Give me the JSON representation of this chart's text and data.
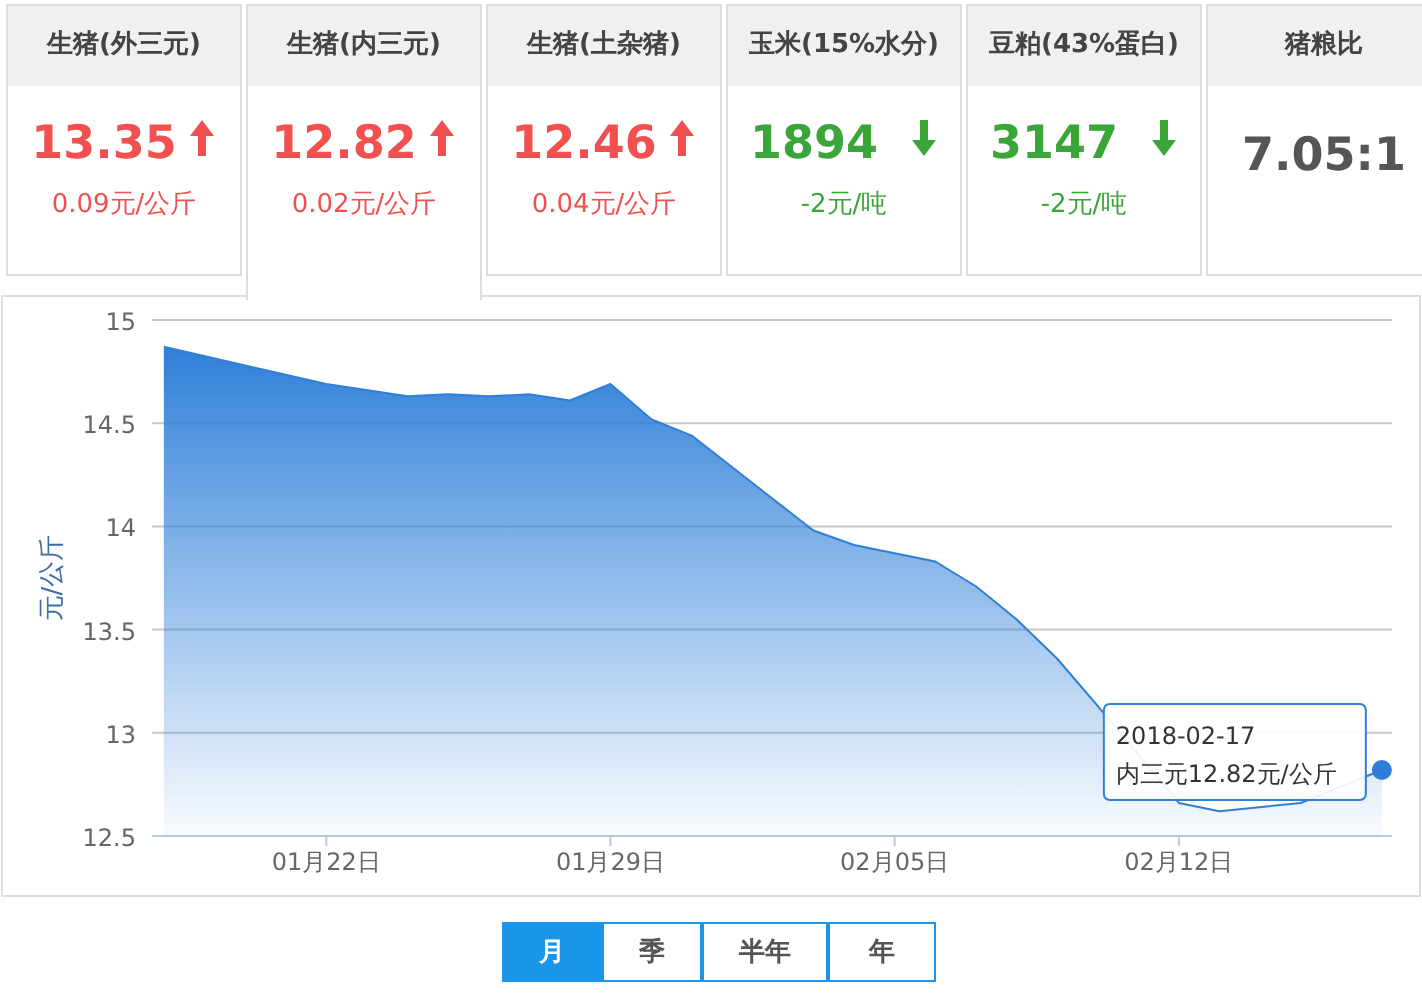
{
  "chart_data": [
    {
      "type": "other",
      "categories": [
        "生猪(外三元)",
        "生猪(内三元)",
        "生猪(土杂猪)",
        "玉米(15%水分)",
        "豆粕(43%蛋白)",
        "猪粮比"
      ],
      "annotations": [
        "13.35",
        "0.09元/公斤",
        "12.82",
        "0.02元/公斤",
        "12.46",
        "0.04元/公斤",
        "1894",
        "-2元/吨",
        "3147",
        "-2元/吨",
        "7.05:1"
      ]
    },
    {
      "type": "area",
      "ylabel": "元/公斤",
      "x": [
        "2018-01-18",
        "2018-01-20",
        "2018-01-22",
        "2018-01-24",
        "2018-01-25",
        "2018-01-26",
        "2018-01-27",
        "2018-01-28",
        "2018-01-29",
        "2018-01-30",
        "2018-01-31",
        "2018-02-03",
        "2018-02-04",
        "2018-02-06",
        "2018-02-07",
        "2018-02-08",
        "2018-02-09",
        "2018-02-10",
        "2018-02-12",
        "2018-02-13",
        "2018-02-15",
        "2018-02-17"
      ],
      "series": [
        {
          "color": "#2f7fd8",
          "values": [
            14.87,
            14.78,
            14.69,
            14.63,
            14.64,
            14.63,
            14.64,
            14.61,
            14.69,
            14.52,
            14.44,
            13.98,
            13.91,
            13.83,
            13.71,
            13.55,
            13.36,
            13.13,
            12.66,
            12.62,
            12.66,
            12.82
          ]
        },
        {
          "type": "scatter",
          "color": "#2f7fd8",
          "x": [
            "2018-02-17"
          ],
          "values": [
            12.82
          ],
          "marker": "circle"
        }
      ],
      "xlim": [
        "2018-01-17T17:00",
        "2018-02-17T06:00"
      ],
      "xticks": [
        {
          "value": "2018-01-22",
          "label": "01月22日"
        },
        {
          "value": "2018-01-29",
          "label": "01月29日"
        },
        {
          "value": "2018-02-05",
          "label": "02月05日"
        },
        {
          "value": "2018-02-12",
          "label": "02月12日"
        }
      ],
      "ylim": [
        12.5,
        15
      ],
      "yticks": [
        12.5,
        13,
        13.5,
        14,
        14.5,
        15
      ],
      "grid": "y",
      "marker": "none",
      "annotations": [
        {
          "text": "2018-02-17\n内三元12.82元/公斤",
          "x": "2018-02-17",
          "y": 12.82
        },
        "月",
        "季",
        "半年",
        "年"
      ]
    }
  ]
}
